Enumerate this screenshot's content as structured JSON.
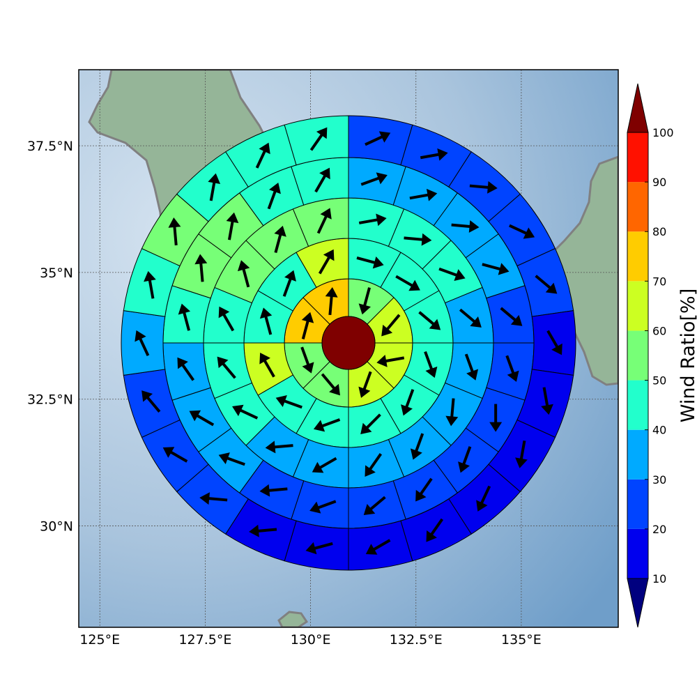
{
  "chart_data": {
    "type": "heatmap",
    "description_free": true,
    "map": {
      "lon_range": [
        124.5,
        137.3
      ],
      "lat_range": [
        28.0,
        39.0
      ],
      "gridlines": true,
      "coastline_color": "#808080",
      "xticks": [
        {
          "value": 125.0,
          "label": "125°E"
        },
        {
          "value": 127.5,
          "label": "127.5°E"
        },
        {
          "value": 130.0,
          "label": "130°E"
        },
        {
          "value": 132.5,
          "label": "132.5°E"
        },
        {
          "value": 135.0,
          "label": "135°E"
        }
      ],
      "yticks": [
        {
          "value": 37.5,
          "label": "37.5°N"
        },
        {
          "value": 35.0,
          "label": "35°N"
        },
        {
          "value": 32.5,
          "label": "32.5°N"
        },
        {
          "value": 30.0,
          "label": "30°N"
        }
      ]
    },
    "center": {
      "lon": 130.8,
      "lat": 33.5,
      "value": 100
    },
    "rings": [
      {
        "values": [
          50,
          60,
          60,
          60,
          50,
          50,
          70,
          70
        ]
      },
      {
        "values": [
          40,
          40,
          40,
          40,
          40,
          40,
          40,
          40,
          60,
          40,
          40,
          60
        ]
      },
      {
        "values": [
          40,
          40,
          40,
          30,
          30,
          30,
          30,
          30,
          30,
          30,
          40,
          40,
          40,
          50,
          50,
          50
        ]
      },
      {
        "values": [
          30,
          30,
          30,
          30,
          20,
          20,
          20,
          20,
          20,
          20,
          20,
          20,
          30,
          30,
          30,
          40,
          50,
          50,
          40,
          40
        ]
      },
      {
        "values": [
          20,
          20,
          20,
          20,
          20,
          10,
          10,
          10,
          10,
          10,
          10,
          10,
          10,
          20,
          20,
          20,
          30,
          40,
          50,
          40,
          40,
          40
        ]
      }
    ],
    "arrows": [
      {
        "ring": 0,
        "dirs": [
          195,
          220,
          260,
          200,
          140,
          160,
          15,
          5
        ]
      },
      {
        "ring": 1,
        "dirs": [
          105,
          120,
          130,
          160,
          200,
          225,
          250,
          290,
          330,
          345,
          20,
          30
        ]
      },
      {
        "ring": 2,
        "dirs": [
          80,
          95,
          110,
          130,
          160,
          185,
          200,
          215,
          240,
          265,
          295,
          320,
          330,
          345,
          15,
          25
        ]
      },
      {
        "ring": 3,
        "dirs": [
          70,
          80,
          95,
          105,
          130,
          160,
          180,
          200,
          215,
          230,
          250,
          265,
          290,
          300,
          325,
          345,
          355,
          10,
          20,
          30
        ]
      },
      {
        "ring": 4,
        "dirs": [
          65,
          80,
          95,
          115,
          130,
          150,
          170,
          190,
          205,
          215,
          240,
          255,
          265,
          275,
          300,
          320,
          335,
          350,
          355,
          10,
          25,
          35
        ]
      }
    ],
    "colorbar": {
      "label": "Wind Ratio[%]",
      "ticks": [
        10,
        20,
        30,
        40,
        50,
        60,
        70,
        80,
        90,
        100
      ],
      "under_color": "#00007f",
      "over_color": "#7f0000",
      "colors": [
        "#0000ee",
        "#0044ff",
        "#00aaff",
        "#22ffcc",
        "#77ff77",
        "#ccff22",
        "#ffcc00",
        "#ff6600",
        "#ff1100"
      ]
    }
  }
}
